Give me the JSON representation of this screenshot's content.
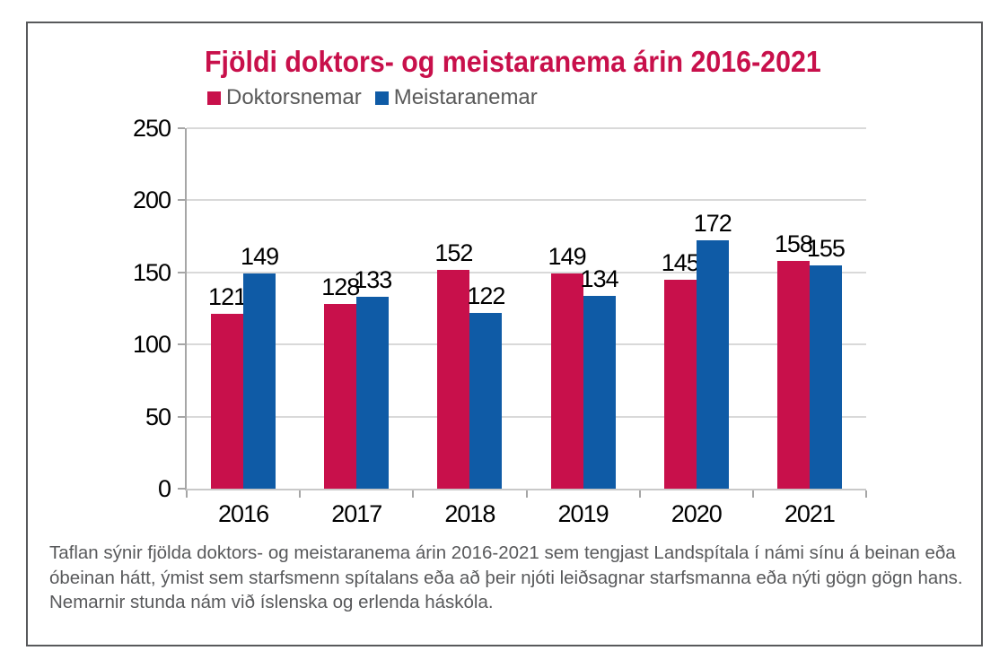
{
  "figure": {
    "caption": "Taflan sýnir fjölda doktors- og meistaranema árin 2016-2021 sem tengjast Landspítala í námi sínu á beinan eða óbeinan hátt, ýmist sem starfsmenn spítalans eða að þeir njóti leiðsagnar starfsmanna eða nýti gögn gögn hans. Nemarnir stunda nám við íslenska og erlenda háskóla."
  },
  "chart_data": {
    "type": "bar",
    "title": "Fjöldi doktors- og meistaranema árin 2016-2021",
    "categories": [
      "2016",
      "2017",
      "2018",
      "2019",
      "2020",
      "2021"
    ],
    "series": [
      {
        "name": "Doktorsnemar",
        "color": "#C8104B",
        "values": [
          121,
          128,
          152,
          149,
          145,
          158
        ]
      },
      {
        "name": "Meistaranemar",
        "color": "#0F5BA6",
        "values": [
          149,
          133,
          122,
          134,
          172,
          155
        ]
      }
    ],
    "xlabel": "",
    "ylabel": "",
    "ylim": [
      0,
      250
    ],
    "yticks": [
      0,
      50,
      100,
      150,
      200,
      250
    ],
    "grid": true,
    "legend_position": "top-left",
    "data_labels": true
  },
  "colors": {
    "title": "#C8104B",
    "doktorsnemar_bar": "#C8104B",
    "meistaranemar_bar": "#0F5BA6",
    "legend_text": "#595959",
    "caption_text": "#58595B",
    "axis_line": "#A6A6A6",
    "gridline": "#D9D9D9",
    "tick_label": "#000000",
    "data_label": "#000000",
    "border": "#58595B",
    "background": "#FFFFFF"
  }
}
